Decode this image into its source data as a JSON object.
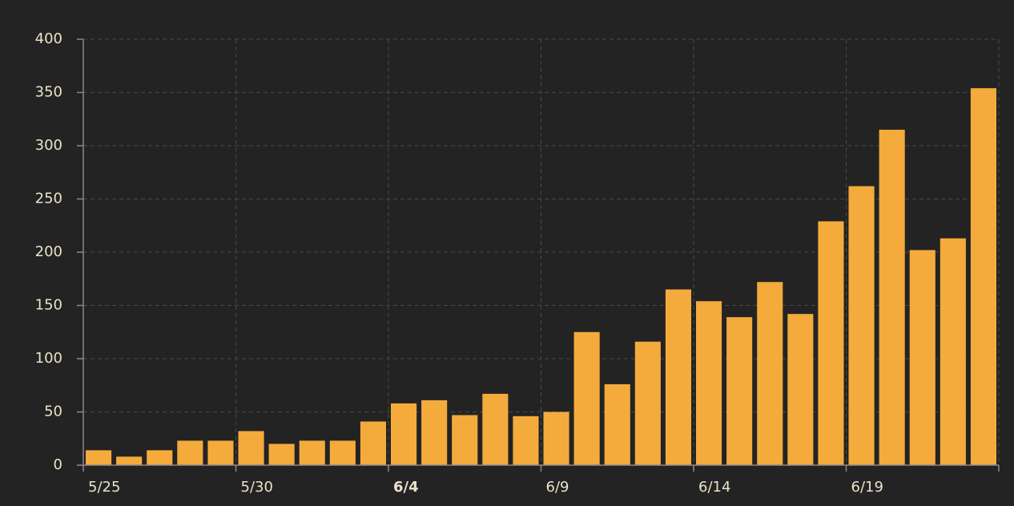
{
  "chart_data": {
    "type": "bar",
    "categories": [
      "5/25",
      null,
      null,
      null,
      null,
      "5/30",
      null,
      null,
      null,
      null,
      "6/4",
      null,
      null,
      null,
      null,
      "6/9",
      null,
      null,
      null,
      null,
      "6/14",
      null,
      null,
      null,
      null,
      "6/19",
      null,
      null,
      null,
      null
    ],
    "values": [
      14,
      8,
      14,
      23,
      23,
      32,
      20,
      23,
      23,
      41,
      58,
      61,
      47,
      67,
      46,
      50,
      125,
      76,
      116,
      165,
      154,
      139,
      172,
      142,
      229,
      262,
      315,
      202,
      213,
      354
    ],
    "color": "#f4ab3c",
    "ylim": [
      0,
      400
    ],
    "yticks": [
      0,
      50,
      100,
      150,
      200,
      250,
      300,
      350,
      400
    ],
    "grid": true,
    "bold_category_index": 10
  }
}
